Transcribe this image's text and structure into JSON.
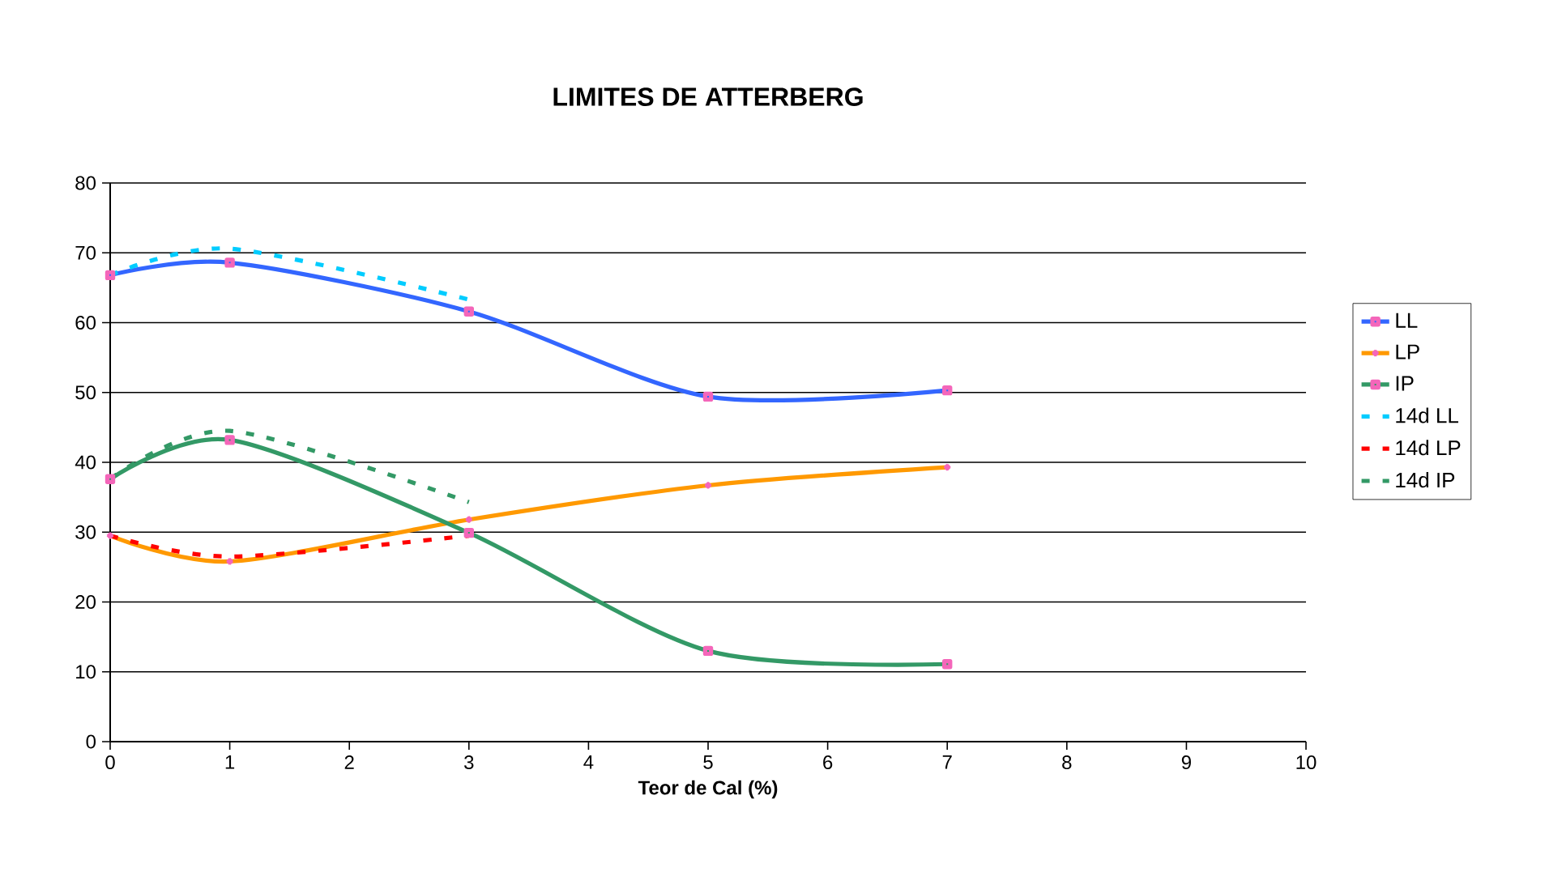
{
  "chart_data": {
    "type": "line",
    "title": "LIMITES DE ATTERBERG",
    "xlabel": "Teor de Cal (%)",
    "x": [
      0,
      1,
      3,
      5,
      7
    ],
    "xlim": [
      0,
      10
    ],
    "xticks": [
      0,
      1,
      2,
      3,
      4,
      5,
      6,
      7,
      8,
      9,
      10
    ],
    "ylim": [
      0,
      80
    ],
    "yticks": [
      0,
      10,
      20,
      30,
      40,
      50,
      60,
      70,
      80
    ],
    "grid": "y",
    "legend": "right",
    "series": [
      {
        "name": "LL",
        "color": "#3366ff",
        "values": [
          66.8,
          68.6,
          61.6,
          49.4,
          50.3
        ],
        "marker": "square",
        "line_style": "solid"
      },
      {
        "name": "LP",
        "color": "#ff9900",
        "values": [
          29.5,
          25.8,
          31.8,
          36.7,
          39.3
        ],
        "marker": "cross",
        "line_style": "solid"
      },
      {
        "name": "IP",
        "color": "#339966",
        "values": [
          37.6,
          43.2,
          29.9,
          13.0,
          11.1
        ],
        "marker": "square",
        "line_style": "solid"
      },
      {
        "name": "14d LL",
        "color": "#00ccff",
        "x": [
          0,
          1,
          3
        ],
        "values": [
          66.8,
          70.6,
          63.3
        ],
        "marker": "none",
        "line_style": "dashed"
      },
      {
        "name": "14d LP",
        "color": "#ff0000",
        "x": [
          0,
          1,
          3
        ],
        "values": [
          29.5,
          26.5,
          29.5
        ],
        "marker": "none",
        "line_style": "dashed"
      },
      {
        "name": "14d IP",
        "color": "#339966",
        "x": [
          0,
          1,
          3
        ],
        "values": [
          37.6,
          44.5,
          34.3
        ],
        "marker": "none",
        "line_style": "dashed"
      }
    ]
  }
}
